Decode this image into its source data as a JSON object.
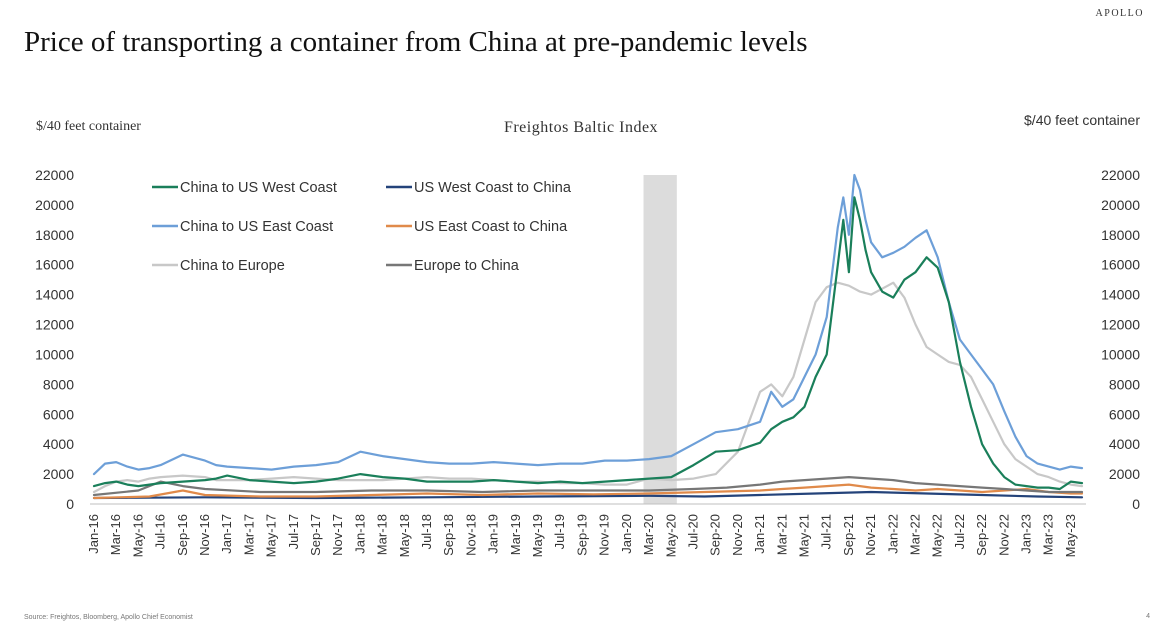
{
  "header": {
    "brand": "APOLLO",
    "title": "Price of transporting a container from China at pre-pandemic levels"
  },
  "footer": {
    "source": "Source: Freightos, Bloomberg, Apollo Chief Economist",
    "page": "4"
  },
  "chart_data": {
    "type": "line",
    "title": "Freightos Baltic Index",
    "ylabel_left": "$/40 feet container",
    "ylabel_right": "$/40 feet container",
    "ylim": [
      0,
      22000
    ],
    "yticks": [
      0,
      2000,
      4000,
      6000,
      8000,
      10000,
      12000,
      14000,
      16000,
      18000,
      20000,
      22000
    ],
    "x_tick_labels": [
      "Jan-16",
      "Mar-16",
      "May-16",
      "Jul-16",
      "Sep-16",
      "Nov-16",
      "Jan-17",
      "Mar-17",
      "May-17",
      "Jul-17",
      "Sep-17",
      "Nov-17",
      "Jan-18",
      "Mar-18",
      "May-18",
      "Jul-18",
      "Sep-18",
      "Nov-18",
      "Jan-19",
      "Mar-19",
      "May-19",
      "Jul-19",
      "Sep-19",
      "Nov-19",
      "Jan-20",
      "Mar-20",
      "May-20",
      "Jul-20",
      "Sep-20",
      "Nov-20",
      "Jan-21",
      "Mar-21",
      "May-21",
      "Jul-21",
      "Sep-21",
      "Nov-21",
      "Jan-22",
      "Mar-22",
      "May-22",
      "Jul-22",
      "Sep-22",
      "Nov-22",
      "Jan-23",
      "Mar-23",
      "May-23"
    ],
    "x_range_months": [
      0,
      89
    ],
    "x_unit": "months since Jan-16",
    "recession_shade": {
      "start": 49.5,
      "end": 52.5
    },
    "legend_position": "top-left",
    "series": [
      {
        "name": "China to US West Coast",
        "color": "#1a7f5a",
        "x": [
          0,
          1,
          2,
          3,
          4,
          5,
          6,
          8,
          10,
          11,
          12,
          14,
          16,
          18,
          20,
          22,
          24,
          26,
          28,
          30,
          32,
          34,
          36,
          38,
          40,
          42,
          44,
          46,
          48,
          50,
          52,
          54,
          56,
          58,
          60,
          61,
          62,
          63,
          64,
          65,
          66,
          67,
          67.5,
          68,
          68.5,
          69,
          69.5,
          70,
          71,
          72,
          73,
          74,
          75,
          76,
          77,
          78,
          79,
          80,
          81,
          82,
          83,
          84,
          85,
          86,
          87,
          88,
          89
        ],
        "y": [
          1200,
          1400,
          1500,
          1300,
          1200,
          1300,
          1400,
          1500,
          1600,
          1700,
          1900,
          1600,
          1500,
          1400,
          1500,
          1700,
          2000,
          1800,
          1700,
          1500,
          1500,
          1500,
          1600,
          1500,
          1400,
          1500,
          1400,
          1500,
          1600,
          1700,
          1800,
          2600,
          3500,
          3600,
          4100,
          5000,
          5500,
          5800,
          6500,
          8500,
          10000,
          16000,
          19000,
          15500,
          20500,
          19000,
          17000,
          15500,
          14200,
          13800,
          15000,
          15500,
          16500,
          15800,
          13500,
          9500,
          6500,
          4000,
          2700,
          1800,
          1300,
          1200,
          1100,
          1100,
          1000,
          1500,
          1400
        ]
      },
      {
        "name": "China to US East Coast",
        "color": "#6d9fd8",
        "x": [
          0,
          1,
          2,
          3,
          4,
          5,
          6,
          8,
          10,
          11,
          12,
          14,
          16,
          18,
          20,
          22,
          24,
          26,
          28,
          30,
          32,
          34,
          36,
          38,
          40,
          42,
          44,
          46,
          48,
          50,
          52,
          54,
          56,
          58,
          60,
          61,
          62,
          63,
          64,
          65,
          66,
          67,
          67.5,
          68,
          68.5,
          69,
          69.5,
          70,
          71,
          72,
          73,
          74,
          75,
          76,
          77,
          78,
          79,
          80,
          81,
          82,
          83,
          84,
          85,
          86,
          87,
          88,
          89
        ],
        "y": [
          2000,
          2700,
          2800,
          2500,
          2300,
          2400,
          2600,
          3300,
          2900,
          2600,
          2500,
          2400,
          2300,
          2500,
          2600,
          2800,
          3500,
          3200,
          3000,
          2800,
          2700,
          2700,
          2800,
          2700,
          2600,
          2700,
          2700,
          2900,
          2900,
          3000,
          3200,
          4000,
          4800,
          5000,
          5500,
          7500,
          6500,
          7000,
          8500,
          10000,
          12500,
          18500,
          20500,
          18000,
          22000,
          21000,
          19000,
          17500,
          16500,
          16800,
          17200,
          17800,
          18300,
          16500,
          13500,
          11000,
          10000,
          9000,
          8000,
          6200,
          4500,
          3200,
          2700,
          2500,
          2300,
          2500,
          2400
        ]
      },
      {
        "name": "China to Europe",
        "color": "#c8c8c8",
        "x": [
          0,
          1,
          2,
          3,
          4,
          5,
          6,
          8,
          10,
          11,
          12,
          14,
          16,
          18,
          20,
          22,
          24,
          26,
          28,
          30,
          32,
          34,
          36,
          38,
          40,
          42,
          44,
          46,
          48,
          50,
          52,
          54,
          56,
          58,
          60,
          61,
          62,
          63,
          64,
          65,
          66,
          67,
          68,
          69,
          70,
          71,
          72,
          73,
          74,
          75,
          76,
          77,
          78,
          79,
          80,
          81,
          82,
          83,
          84,
          85,
          86,
          87,
          88,
          89
        ],
        "y": [
          800,
          1200,
          1500,
          1600,
          1500,
          1700,
          1800,
          1900,
          1800,
          1600,
          1600,
          1600,
          1700,
          1800,
          1700,
          1600,
          1600,
          1600,
          1700,
          1800,
          1700,
          1700,
          1600,
          1500,
          1500,
          1400,
          1400,
          1300,
          1300,
          1700,
          1600,
          1700,
          2000,
          3500,
          7500,
          8000,
          7200,
          8500,
          11000,
          13500,
          14500,
          14800,
          14600,
          14200,
          14000,
          14400,
          14800,
          13800,
          12000,
          10500,
          10000,
          9500,
          9300,
          8500,
          7000,
          5500,
          4000,
          3000,
          2500,
          2000,
          1800,
          1500,
          1300,
          1200
        ]
      },
      {
        "name": "US West Coast to China",
        "color": "#24437a",
        "x": [
          0,
          10,
          20,
          30,
          40,
          50,
          55,
          60,
          65,
          70,
          75,
          80,
          85,
          89
        ],
        "y": [
          400,
          450,
          400,
          450,
          500,
          550,
          500,
          600,
          700,
          800,
          700,
          600,
          500,
          450
        ]
      },
      {
        "name": "US East Coast to China",
        "color": "#e08a4a",
        "x": [
          0,
          5,
          8,
          10,
          15,
          20,
          25,
          30,
          35,
          40,
          45,
          50,
          55,
          60,
          62,
          64,
          66,
          68,
          70,
          72,
          74,
          76,
          78,
          80,
          82,
          84,
          86,
          88,
          89
        ],
        "y": [
          400,
          500,
          900,
          600,
          500,
          500,
          600,
          700,
          600,
          700,
          650,
          700,
          800,
          900,
          1000,
          1100,
          1200,
          1300,
          1100,
          1000,
          900,
          1000,
          900,
          800,
          900,
          1000,
          800,
          700,
          700
        ]
      },
      {
        "name": "Europe to China",
        "color": "#777777",
        "x": [
          0,
          4,
          6,
          8,
          10,
          15,
          20,
          25,
          30,
          35,
          40,
          45,
          50,
          54,
          57,
          60,
          62,
          64,
          66,
          68,
          70,
          72,
          74,
          76,
          78,
          80,
          82,
          84,
          86,
          88,
          89
        ],
        "y": [
          600,
          900,
          1500,
          1200,
          1000,
          800,
          800,
          900,
          900,
          800,
          900,
          900,
          900,
          1000,
          1100,
          1300,
          1500,
          1600,
          1700,
          1800,
          1700,
          1600,
          1400,
          1300,
          1200,
          1100,
          1000,
          900,
          800,
          800,
          800
        ]
      }
    ]
  }
}
